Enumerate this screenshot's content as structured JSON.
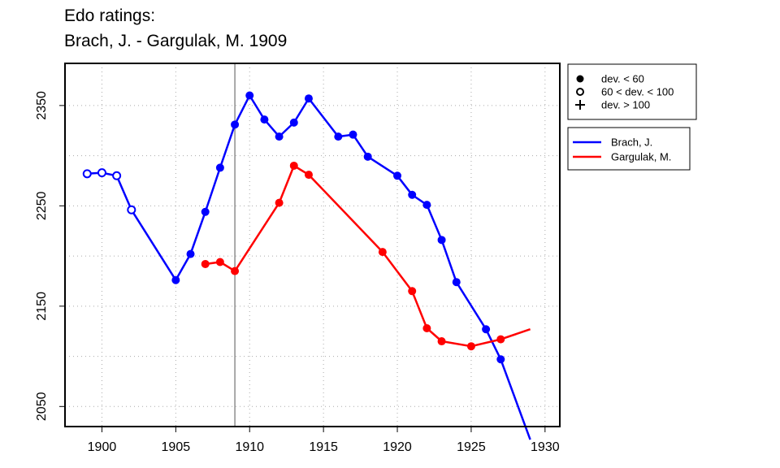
{
  "title_line1": "Edo ratings:",
  "title_line2": "Brach, J. - Gargulak, M. 1909",
  "chart_data": {
    "type": "line",
    "title": "Edo ratings:\nBrach, J. - Gargulak, M. 1909",
    "xlabel": "",
    "ylabel": "",
    "xlim": [
      1897.5,
      1931
    ],
    "ylim": [
      2030,
      2392
    ],
    "x_ticks": [
      1900,
      1905,
      1910,
      1915,
      1920,
      1925,
      1930
    ],
    "y_ticks": [
      2050,
      2150,
      2250,
      2350
    ],
    "grid": true,
    "marker_line_year": 1909,
    "marker_legend": [
      {
        "symbol": "filled-circle",
        "label": "dev. < 60"
      },
      {
        "symbol": "open-circle",
        "label": "60 < dev. < 100"
      },
      {
        "symbol": "plus",
        "label": "dev. > 100"
      }
    ],
    "legend_position": "right",
    "series": [
      {
        "name": "Brach, J.",
        "color": "#0000ff",
        "points": [
          {
            "x": 1899,
            "y": 2282,
            "marker": "open"
          },
          {
            "x": 1900,
            "y": 2283,
            "marker": "open"
          },
          {
            "x": 1901,
            "y": 2280,
            "marker": "open"
          },
          {
            "x": 1902,
            "y": 2246,
            "marker": "open"
          },
          {
            "x": 1905,
            "y": 2176,
            "marker": "filled"
          },
          {
            "x": 1906,
            "y": 2202,
            "marker": "filled"
          },
          {
            "x": 1907,
            "y": 2244,
            "marker": "filled"
          },
          {
            "x": 1908,
            "y": 2288,
            "marker": "filled"
          },
          {
            "x": 1909,
            "y": 2331,
            "marker": "filled"
          },
          {
            "x": 1910,
            "y": 2360,
            "marker": "filled"
          },
          {
            "x": 1911,
            "y": 2336,
            "marker": "filled"
          },
          {
            "x": 1912,
            "y": 2319,
            "marker": "filled"
          },
          {
            "x": 1913,
            "y": 2333,
            "marker": "filled"
          },
          {
            "x": 1914,
            "y": 2357,
            "marker": "filled"
          },
          {
            "x": 1916,
            "y": 2319,
            "marker": "filled"
          },
          {
            "x": 1917,
            "y": 2321,
            "marker": "filled"
          },
          {
            "x": 1918,
            "y": 2299,
            "marker": "filled"
          },
          {
            "x": 1920,
            "y": 2280,
            "marker": "filled"
          },
          {
            "x": 1921,
            "y": 2261,
            "marker": "filled"
          },
          {
            "x": 1922,
            "y": 2251,
            "marker": "filled"
          },
          {
            "x": 1923,
            "y": 2216,
            "marker": "filled"
          },
          {
            "x": 1924,
            "y": 2174,
            "marker": "filled"
          },
          {
            "x": 1926,
            "y": 2127,
            "marker": "filled"
          },
          {
            "x": 1927,
            "y": 2097,
            "marker": "filled"
          },
          {
            "x": 1929,
            "y": 2017,
            "marker": "none"
          }
        ]
      },
      {
        "name": "Gargulak, M.",
        "color": "#ff0000",
        "points": [
          {
            "x": 1907,
            "y": 2192,
            "marker": "filled"
          },
          {
            "x": 1908,
            "y": 2194,
            "marker": "filled"
          },
          {
            "x": 1909,
            "y": 2185,
            "marker": "filled"
          },
          {
            "x": 1912,
            "y": 2253,
            "marker": "filled"
          },
          {
            "x": 1913,
            "y": 2290,
            "marker": "filled"
          },
          {
            "x": 1914,
            "y": 2281,
            "marker": "filled"
          },
          {
            "x": 1919,
            "y": 2204,
            "marker": "filled"
          },
          {
            "x": 1921,
            "y": 2165,
            "marker": "filled"
          },
          {
            "x": 1922,
            "y": 2128,
            "marker": "filled"
          },
          {
            "x": 1923,
            "y": 2115,
            "marker": "filled"
          },
          {
            "x": 1925,
            "y": 2110,
            "marker": "filled"
          },
          {
            "x": 1927,
            "y": 2117,
            "marker": "filled"
          },
          {
            "x": 1929,
            "y": 2127,
            "marker": "none"
          }
        ]
      }
    ]
  }
}
